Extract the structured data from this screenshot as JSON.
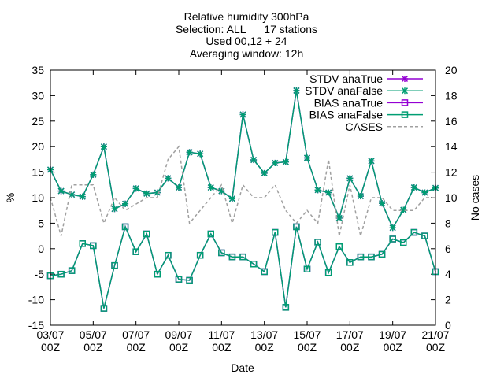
{
  "chart_data": {
    "type": "line",
    "title_lines": [
      "Relative humidity 300hPa",
      "Selection: ALL      17 stations",
      "Used 00,12 + 24",
      "Averaging window: 12h"
    ],
    "xlabel": "Date",
    "ylabel": "%",
    "y2label": "No cases",
    "ylim": [
      -15,
      35
    ],
    "y2lim": [
      0,
      20
    ],
    "yticks": [
      -15,
      -10,
      -5,
      0,
      5,
      10,
      15,
      20,
      25,
      30,
      35
    ],
    "y2ticks": [
      0,
      2,
      4,
      6,
      8,
      10,
      12,
      14,
      16,
      18,
      20
    ],
    "x_range_hours": [
      0,
      432
    ],
    "x_ticks": [
      {
        "h": 0,
        "top": "03/07",
        "bottom": "00Z"
      },
      {
        "h": 48,
        "top": "05/07",
        "bottom": "00Z"
      },
      {
        "h": 96,
        "top": "07/07",
        "bottom": "00Z"
      },
      {
        "h": 144,
        "top": "09/07",
        "bottom": "00Z"
      },
      {
        "h": 192,
        "top": "11/07",
        "bottom": "00Z"
      },
      {
        "h": 240,
        "top": "13/07",
        "bottom": "00Z"
      },
      {
        "h": 288,
        "top": "15/07",
        "bottom": "00Z"
      },
      {
        "h": 336,
        "top": "17/07",
        "bottom": "00Z"
      },
      {
        "h": 384,
        "top": "19/07",
        "bottom": "00Z"
      },
      {
        "h": 432,
        "top": "21/07",
        "bottom": "00Z"
      }
    ],
    "x_hours": [
      0,
      12,
      24,
      36,
      48,
      60,
      72,
      84,
      96,
      108,
      120,
      132,
      144,
      156,
      168,
      180,
      192,
      204,
      216,
      228,
      240,
      252,
      264,
      276,
      288,
      300,
      312,
      324,
      336,
      348,
      360,
      372,
      384,
      396,
      408,
      420,
      432
    ],
    "legend_position": "top-right",
    "series": [
      {
        "name": "STDV anaTrue",
        "axis": "y",
        "color": "#9400d3",
        "marker": "x",
        "values": [
          15.5,
          11.3,
          10.6,
          10.2,
          14.5,
          20.0,
          7.8,
          8.8,
          11.8,
          10.8,
          11.0,
          13.8,
          12.0,
          18.9,
          18.6,
          12.0,
          11.3,
          9.8,
          26.3,
          17.4,
          14.8,
          16.8,
          17.0,
          31.0,
          17.8,
          11.5,
          11.0,
          6.0,
          13.8,
          10.3,
          17.2,
          8.9,
          4.1,
          7.6,
          12.0,
          11.0,
          11.9
        ]
      },
      {
        "name": "STDV anaFalse",
        "axis": "y",
        "color": "#009e73",
        "marker": "x",
        "values": [
          15.5,
          11.3,
          10.6,
          10.2,
          14.5,
          20.0,
          7.8,
          8.8,
          11.8,
          10.8,
          11.0,
          13.8,
          12.0,
          18.9,
          18.6,
          12.0,
          11.3,
          9.8,
          26.3,
          17.4,
          14.8,
          16.8,
          17.0,
          31.0,
          17.8,
          11.5,
          11.0,
          6.0,
          13.8,
          10.3,
          17.2,
          8.9,
          4.1,
          7.6,
          12.0,
          11.0,
          11.9
        ]
      },
      {
        "name": "BIAS anaTrue",
        "axis": "y",
        "color": "#9400d3",
        "marker": "square",
        "values": [
          -5.3,
          -5.0,
          -4.3,
          1.0,
          0.6,
          -11.7,
          -3.3,
          4.3,
          -0.6,
          2.9,
          -5.0,
          -1.3,
          -6.0,
          -6.2,
          -1.3,
          2.9,
          -0.8,
          -1.6,
          -1.6,
          -3.0,
          -4.5,
          3.2,
          -11.5,
          4.3,
          -4.0,
          1.3,
          -4.7,
          0.4,
          -2.7,
          -1.6,
          -1.6,
          -1.1,
          1.9,
          1.2,
          3.2,
          2.5,
          -4.5
        ]
      },
      {
        "name": "BIAS anaFalse",
        "axis": "y",
        "color": "#009e73",
        "marker": "square",
        "values": [
          -5.3,
          -5.0,
          -4.3,
          1.0,
          0.6,
          -11.7,
          -3.3,
          4.3,
          -0.6,
          2.9,
          -5.0,
          -1.3,
          -6.0,
          -6.2,
          -1.3,
          2.9,
          -0.8,
          -1.6,
          -1.6,
          -3.0,
          -4.5,
          3.2,
          -11.5,
          4.3,
          -4.0,
          1.3,
          -4.7,
          0.4,
          -2.7,
          -1.6,
          -1.6,
          -1.1,
          1.9,
          1.2,
          3.2,
          2.5,
          -4.5
        ]
      },
      {
        "name": "CASES",
        "axis": "y2",
        "color": "#a0a0a0",
        "marker": "none",
        "dashed": true,
        "values": [
          10,
          7,
          11,
          11,
          11,
          8,
          10,
          9,
          9.5,
          10,
          10,
          13,
          14,
          8,
          9,
          10,
          11,
          8,
          11,
          10,
          10,
          11,
          9,
          8,
          9,
          8,
          13,
          7,
          11,
          7,
          10,
          10,
          9,
          9,
          9,
          10,
          10
        ]
      }
    ]
  }
}
